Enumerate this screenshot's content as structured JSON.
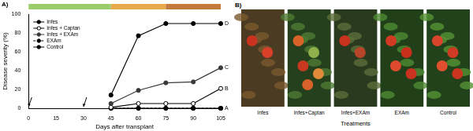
{
  "chart_data": {
    "type": "line",
    "panel_label": "A)",
    "x_label": "Days after transplant",
    "y_label": "Disease severity (%)",
    "x": [
      45,
      60,
      75,
      90,
      105
    ],
    "xlim": [
      0,
      105
    ],
    "xticks": [
      0,
      15,
      30,
      45,
      60,
      75,
      90,
      105
    ],
    "ylim": [
      0,
      100
    ],
    "yticks": [
      0,
      20,
      40,
      60,
      80,
      100
    ],
    "grid": false,
    "legend": "upper left",
    "series": [
      {
        "name": "Infes",
        "color": "#000000",
        "marker": "circle",
        "line_style": "solid",
        "values": [
          14,
          77,
          90,
          90,
          90
        ]
      },
      {
        "name": "Infes + Captan",
        "color": "#000000",
        "marker": "open_circle",
        "line_style": "solid",
        "values": [
          1,
          5,
          5,
          5,
          21
        ]
      },
      {
        "name": "Infes + EXAm",
        "color": "#3a3a3a",
        "marker": "circle",
        "line_style": "solid",
        "values": [
          5,
          19,
          27,
          28,
          43
        ]
      },
      {
        "name": "EXAm",
        "color": "#000000",
        "marker": "circle",
        "line_style": "dashed",
        "values": [
          0,
          0,
          0,
          0,
          0
        ]
      },
      {
        "name": "Control",
        "color": "#000000",
        "marker": "circle",
        "line_style": "solid",
        "values": [
          0,
          0,
          0,
          0,
          0
        ]
      }
    ],
    "annotations": [
      {
        "text": "D",
        "x": 105,
        "y": 90
      },
      {
        "text": "C",
        "x": 105,
        "y": 43
      },
      {
        "text": "B",
        "x": 105,
        "y": 21
      },
      {
        "text": "A",
        "x": 105,
        "y": 0
      }
    ],
    "bands": [
      {
        "start": 0,
        "end": 45,
        "color": "#9acd6a"
      },
      {
        "start": 45,
        "end": 75,
        "color": "#e8a94a"
      },
      {
        "start": 75,
        "end": 105,
        "color": "#c47a3a"
      }
    ],
    "arrows": [
      {
        "x": 0
      },
      {
        "x": 30
      }
    ]
  },
  "photo_panel": {
    "panel_label": "B)",
    "photos": [
      "Infes",
      "Infes+Captan",
      "Infes+EXAm",
      "EXAm",
      "Control"
    ],
    "x_label": "Treatments"
  }
}
